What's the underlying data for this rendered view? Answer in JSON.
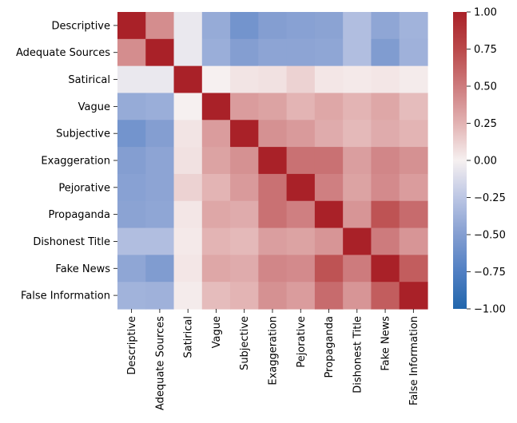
{
  "chart_data": {
    "type": "heatmap",
    "title": "",
    "xlabel": "",
    "ylabel": "",
    "rows": [
      "Descriptive",
      "Adequate Sources",
      "Satirical",
      "Vague",
      "Subjective",
      "Exaggeration",
      "Pejorative",
      "Propaganda",
      "Dishonest Title",
      "Fake News",
      "False Information"
    ],
    "columns": [
      "Descriptive",
      "Adequate Sources",
      "Satirical",
      "Vague",
      "Subjective",
      "Exaggeration",
      "Pejorative",
      "Propaganda",
      "Dishonest Title",
      "Fake News",
      "False Information"
    ],
    "values": [
      [
        1.0,
        0.42,
        -0.05,
        -0.42,
        -0.58,
        -0.5,
        -0.48,
        -0.47,
        -0.3,
        -0.45,
        -0.37
      ],
      [
        0.42,
        1.0,
        -0.05,
        -0.4,
        -0.5,
        -0.46,
        -0.46,
        -0.45,
        -0.3,
        -0.52,
        -0.38
      ],
      [
        -0.05,
        -0.05,
        1.0,
        0.0,
        0.05,
        0.06,
        0.12,
        0.04,
        0.03,
        0.04,
        0.02
      ],
      [
        -0.42,
        -0.4,
        0.0,
        1.0,
        0.35,
        0.32,
        0.24,
        0.3,
        0.24,
        0.3,
        0.21
      ],
      [
        -0.58,
        -0.5,
        0.05,
        0.35,
        1.0,
        0.4,
        0.36,
        0.28,
        0.22,
        0.28,
        0.24
      ],
      [
        -0.5,
        -0.46,
        0.06,
        0.32,
        0.4,
        1.0,
        0.55,
        0.55,
        0.34,
        0.45,
        0.4
      ],
      [
        -0.48,
        -0.46,
        0.12,
        0.24,
        0.36,
        0.55,
        1.0,
        0.48,
        0.32,
        0.43,
        0.35
      ],
      [
        -0.47,
        -0.45,
        0.04,
        0.3,
        0.28,
        0.55,
        0.48,
        1.0,
        0.38,
        0.7,
        0.58
      ],
      [
        -0.3,
        -0.3,
        0.03,
        0.24,
        0.22,
        0.34,
        0.32,
        0.38,
        1.0,
        0.5,
        0.38
      ],
      [
        -0.45,
        -0.52,
        0.04,
        0.3,
        0.28,
        0.45,
        0.43,
        0.7,
        0.5,
        1.0,
        0.65
      ],
      [
        -0.37,
        -0.38,
        0.02,
        0.21,
        0.24,
        0.4,
        0.35,
        0.58,
        0.38,
        0.65,
        1.0
      ]
    ],
    "vmin": -1.0,
    "vmax": 1.0,
    "colormap": "vlag (blue-white-red)",
    "colorbar": {
      "ticks": [
        1.0,
        0.75,
        0.5,
        0.25,
        0.0,
        -0.25,
        -0.5,
        -0.75,
        -1.0
      ],
      "tick_labels": [
        "1.00",
        "0.75",
        "0.50",
        "0.25",
        "0.00",
        "−0.25",
        "−0.50",
        "−0.75",
        "−1.00"
      ],
      "placement": "right"
    }
  }
}
